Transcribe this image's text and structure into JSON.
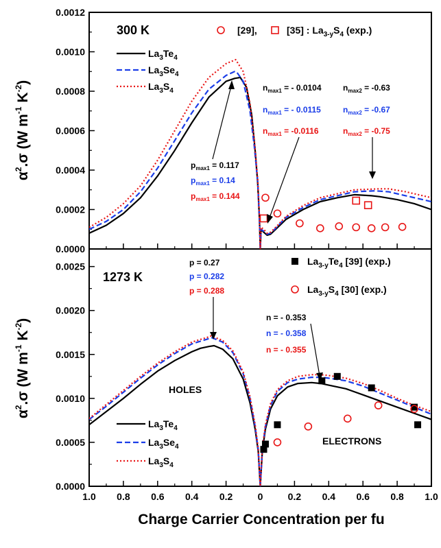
{
  "chart_data": [
    {
      "panel": "top",
      "type": "line",
      "temperature_label": "300 K",
      "xlabel": "",
      "ylabel": "α².σ (W m⁻¹ K⁻²)",
      "ylabel_parts": {
        "alpha": "α",
        "sq": "2",
        "mid": ".σ (W m",
        "m1": "-1",
        "k": " K",
        "k2": "-2",
        "close": ")"
      },
      "xlim": [
        -1.0,
        1.0
      ],
      "ylim": [
        0,
        0.0012
      ],
      "yticks": [
        "0.0000",
        "0.0002",
        "0.0004",
        "0.0006",
        "0.0008",
        "0.0010",
        "0.0012"
      ],
      "xticks": [
        "1.0",
        "0.8",
        "0.6",
        "0.4",
        "0.2",
        "0",
        "0.2",
        "0.4",
        "0.6",
        "0.8",
        "1.0"
      ],
      "colors": {
        "La3Te4": "#000000",
        "La3Se4": "#1a3de8",
        "La3S4": "#e81414"
      },
      "legend_placement": "top-left",
      "series": [
        {
          "name": "La3Te4",
          "label": {
            "base": "La",
            "s1": "3",
            "mid": "Te",
            "s2": "4"
          },
          "style": "solid",
          "color": "#000000",
          "x": [
            -1.0,
            -0.9,
            -0.8,
            -0.7,
            -0.6,
            -0.5,
            -0.4,
            -0.3,
            -0.2,
            -0.15,
            -0.117,
            -0.08,
            -0.05,
            -0.03,
            -0.015,
            -0.005,
            0.0,
            0.005,
            0.02,
            0.04,
            0.06,
            0.09,
            0.15,
            0.25,
            0.35,
            0.45,
            0.55,
            0.65,
            0.7,
            0.8,
            0.9,
            1.0
          ],
          "y": [
            8e-05,
            0.00012,
            0.00018,
            0.00026,
            0.00037,
            0.0005,
            0.00064,
            0.00077,
            0.00085,
            0.000865,
            0.00087,
            0.00082,
            0.00068,
            0.0005,
            0.00033,
            0.00015,
            0.0,
            0.0001,
            8.5e-05,
            7e-05,
            7.5e-05,
            0.0001,
            0.00015,
            0.0002,
            0.00024,
            0.00026,
            0.000275,
            0.00027,
            0.000265,
            0.00025,
            0.00023,
            0.0002
          ]
        },
        {
          "name": "La3Se4",
          "label": {
            "base": "La",
            "s1": "3",
            "mid": "Se",
            "s2": "4"
          },
          "style": "dashed",
          "color": "#1a3de8",
          "x": [
            -1.0,
            -0.9,
            -0.8,
            -0.7,
            -0.6,
            -0.5,
            -0.4,
            -0.3,
            -0.2,
            -0.15,
            -0.14,
            -0.1,
            -0.06,
            -0.035,
            -0.015,
            -0.005,
            0.0,
            0.005,
            0.02,
            0.04,
            0.06,
            0.09,
            0.15,
            0.25,
            0.35,
            0.45,
            0.55,
            0.67,
            0.75,
            0.85,
            0.95,
            1.0
          ],
          "y": [
            0.0001,
            0.00014,
            0.0002,
            0.00029,
            0.00041,
            0.00055,
            0.00069,
            0.00081,
            0.00088,
            0.0009,
            0.0009,
            0.00085,
            0.0007,
            0.00052,
            0.00034,
            0.00015,
            0.0,
            0.0001,
            9e-05,
            7.5e-05,
            8e-05,
            0.000105,
            0.00016,
            0.00021,
            0.00025,
            0.00027,
            0.00029,
            0.000295,
            0.00029,
            0.00027,
            0.00025,
            0.00024
          ]
        },
        {
          "name": "La3S4",
          "label": {
            "base": "La",
            "s1": "3",
            "mid": "S",
            "s2": "4"
          },
          "style": "dotted",
          "color": "#e81414",
          "x": [
            -1.0,
            -0.9,
            -0.8,
            -0.7,
            -0.6,
            -0.5,
            -0.4,
            -0.3,
            -0.2,
            -0.144,
            -0.1,
            -0.06,
            -0.035,
            -0.015,
            -0.005,
            0.0,
            0.005,
            0.02,
            0.04,
            0.06,
            0.09,
            0.15,
            0.25,
            0.35,
            0.45,
            0.55,
            0.7,
            0.75,
            0.85,
            0.95,
            1.0
          ],
          "y": [
            0.00011,
            0.00016,
            0.00023,
            0.00032,
            0.00045,
            0.0006,
            0.00075,
            0.00087,
            0.00094,
            0.00096,
            0.0009,
            0.00074,
            0.00055,
            0.00035,
            0.00016,
            0.0,
            0.00011,
            0.0001,
            8e-05,
            8.5e-05,
            0.00011,
            0.000165,
            0.00022,
            0.00026,
            0.00028,
            0.0003,
            0.000305,
            0.000305,
            0.00029,
            0.00027,
            0.00026
          ]
        }
      ],
      "exp_points": [
        {
          "name": "[29]",
          "marker": "circle",
          "color": "#e81414",
          "x": [
            0.03,
            0.1,
            0.23,
            0.35,
            0.46,
            0.56,
            0.65,
            0.73,
            0.83
          ],
          "y": [
            0.00026,
            0.00018,
            0.00013,
            0.000105,
            0.000115,
            0.00011,
            0.000105,
            0.00011,
            0.000112
          ]
        },
        {
          "name": "[35] : La3-yS4 (exp.)",
          "marker": "square",
          "color": "#e81414",
          "x": [
            0.02,
            0.56,
            0.63
          ],
          "y": [
            0.000155,
            0.000245,
            0.000222
          ]
        }
      ],
      "legend_exp": {
        "ref29": "[29],",
        "ref35": "[35] : La",
        "sub": "3-y",
        "tail": "S",
        "sub2": "4",
        "tail2": " (exp.)"
      },
      "annotations": {
        "p_te": "p",
        "p_te_sub": "max1",
        "p_te_val": " = 0.117",
        "p_se": "p",
        "p_se_sub": "max1",
        "p_se_val": " = 0.14",
        "p_s": "p",
        "p_s_sub": "max1",
        "p_s_val": " = 0.144",
        "n1_te": "n",
        "n1_te_sub": "max1",
        "n1_te_val": " = - 0.0104",
        "n1_se": "n",
        "n1_se_sub": "max1",
        "n1_se_val": " = - 0.0115",
        "n1_s": "n",
        "n1_s_sub": "max1",
        "n1_s_val": " = -0.0116",
        "n2_te": "n",
        "n2_te_sub": "max2",
        "n2_te_val": " = -0.63",
        "n2_se": "n",
        "n2_se_sub": "max2",
        "n2_se_val": " = -0.67",
        "n2_s": "n",
        "n2_s_sub": "max2",
        "n2_s_val": " = -0.75"
      }
    },
    {
      "panel": "bottom",
      "type": "line",
      "temperature_label": "1273 K",
      "xlabel": "Charge Carrier Concentration per fu",
      "ylabel": "α².σ (W m⁻¹ K⁻²)",
      "ylabel_parts": {
        "alpha": "α",
        "sq": "2",
        "mid": ".σ (W m",
        "m1": "-1",
        "k": " K",
        "k2": "-2",
        "close": ")"
      },
      "xlim": [
        -1.0,
        1.0
      ],
      "ylim": [
        0,
        0.0027
      ],
      "yticks": [
        "0.0000",
        "0.0005",
        "0.0010",
        "0.0015",
        "0.0020",
        "0.0025"
      ],
      "xticks": [
        "1.0",
        "0.8",
        "0.6",
        "0.4",
        "0.2",
        "0",
        "0.2",
        "0.4",
        "0.6",
        "0.8",
        "1.0"
      ],
      "legend_placement": "bottom-left",
      "region_labels": {
        "holes": "HOLES",
        "electrons": "ELECTRONS"
      },
      "series": [
        {
          "name": "La3Te4",
          "label": {
            "base": "La",
            "s1": "3",
            "mid": "Te",
            "s2": "4"
          },
          "style": "solid",
          "color": "#000000",
          "x": [
            -1.0,
            -0.9,
            -0.8,
            -0.7,
            -0.6,
            -0.5,
            -0.4,
            -0.35,
            -0.3,
            -0.27,
            -0.22,
            -0.16,
            -0.1,
            -0.06,
            -0.03,
            -0.012,
            0.0,
            0.012,
            0.03,
            0.06,
            0.1,
            0.16,
            0.22,
            0.3,
            0.353,
            0.4,
            0.5,
            0.6,
            0.7,
            0.8,
            0.9,
            1.0
          ],
          "y": [
            0.0007,
            0.00085,
            0.001,
            0.00116,
            0.00131,
            0.00143,
            0.00153,
            0.00157,
            0.00159,
            0.0016,
            0.00156,
            0.00145,
            0.00122,
            0.00095,
            0.00065,
            0.0004,
            0.0,
            0.0004,
            0.00065,
            0.00088,
            0.00103,
            0.00113,
            0.00117,
            0.00118,
            0.00117,
            0.00115,
            0.00111,
            0.00104,
            0.00097,
            0.0009,
            0.00083,
            0.00076
          ]
        },
        {
          "name": "La3Se4",
          "label": {
            "base": "La",
            "s1": "3",
            "mid": "Se",
            "s2": "4"
          },
          "style": "dashed",
          "color": "#1a3de8",
          "x": [
            -1.0,
            -0.9,
            -0.8,
            -0.7,
            -0.6,
            -0.5,
            -0.4,
            -0.3,
            -0.282,
            -0.22,
            -0.16,
            -0.1,
            -0.06,
            -0.03,
            -0.012,
            0.0,
            0.012,
            0.03,
            0.06,
            0.1,
            0.16,
            0.22,
            0.3,
            0.358,
            0.4,
            0.5,
            0.6,
            0.7,
            0.8,
            0.9,
            1.0
          ],
          "y": [
            0.00076,
            0.00091,
            0.00107,
            0.00123,
            0.00138,
            0.00151,
            0.00162,
            0.00168,
            0.00169,
            0.00164,
            0.00152,
            0.00128,
            0.001,
            0.00068,
            0.00042,
            0.0,
            0.00042,
            0.00068,
            0.00092,
            0.00108,
            0.00118,
            0.00122,
            0.00124,
            0.00124,
            0.00123,
            0.0012,
            0.00114,
            0.00106,
            0.00098,
            0.0009,
            0.00082
          ]
        },
        {
          "name": "La3S4",
          "label": {
            "base": "La",
            "s1": "3",
            "mid": "S",
            "s2": "4"
          },
          "style": "dotted",
          "color": "#e81414",
          "x": [
            -1.0,
            -0.9,
            -0.8,
            -0.7,
            -0.6,
            -0.5,
            -0.4,
            -0.3,
            -0.288,
            -0.22,
            -0.16,
            -0.1,
            -0.06,
            -0.03,
            -0.012,
            0.0,
            0.012,
            0.03,
            0.06,
            0.1,
            0.16,
            0.22,
            0.3,
            0.355,
            0.4,
            0.5,
            0.6,
            0.7,
            0.8,
            0.9,
            1.0
          ],
          "y": [
            0.00077,
            0.00093,
            0.00109,
            0.00125,
            0.0014,
            0.00153,
            0.00164,
            0.0017,
            0.00171,
            0.00166,
            0.00154,
            0.0013,
            0.00102,
            0.0007,
            0.00043,
            0.0,
            0.00043,
            0.0007,
            0.00094,
            0.0011,
            0.0012,
            0.00125,
            0.00127,
            0.00127,
            0.00126,
            0.00123,
            0.00117,
            0.00109,
            0.001,
            0.00092,
            0.00085
          ]
        }
      ],
      "exp_points": [
        {
          "name": "La3-yTe4 [39] (exp.)",
          "marker": "filled-square",
          "color": "#000000",
          "x": [
            0.02,
            0.03,
            0.1,
            0.36,
            0.45,
            0.65,
            0.9,
            0.92
          ],
          "y": [
            0.00042,
            0.00048,
            0.0007,
            0.0012,
            0.00125,
            0.00112,
            0.0009,
            0.0007
          ]
        },
        {
          "name": "La3-yS4 [30] (exp.)",
          "marker": "circle",
          "color": "#e81414",
          "x": [
            0.1,
            0.28,
            0.51,
            0.69,
            0.9
          ],
          "y": [
            0.0005,
            0.00068,
            0.00077,
            0.00092,
            0.00088
          ]
        }
      ],
      "legend_exp": {
        "te_base": "La",
        "te_sub": "3-y",
        "te_mid": "Te",
        "te_sub2": "4",
        "te_tail": " [39] (exp.)",
        "s_base": "La",
        "s_sub": "3-y",
        "s_mid": "S",
        "s_sub2": "4",
        "s_tail": " [30] (exp.)"
      },
      "annotations": {
        "p_te": "p = 0.27",
        "p_se": "p = 0.282",
        "p_s": "p = 0.288",
        "n_te": "n = - 0.353",
        "n_se": "n = - 0.358",
        "n_s": "n = - 0.355"
      }
    }
  ]
}
